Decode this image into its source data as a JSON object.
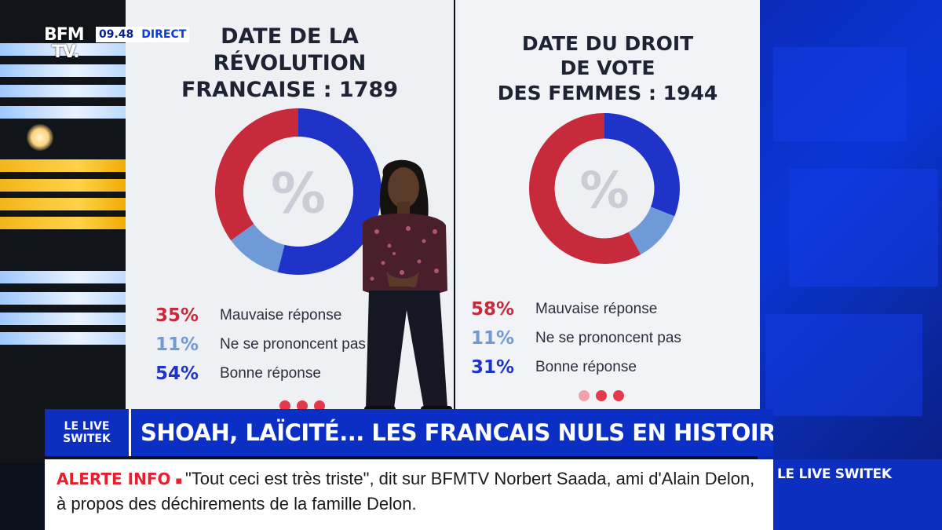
{
  "channel": {
    "logo_line1": "BFM",
    "logo_line2": "TV.",
    "time": "09.48",
    "live_label": "DIRECT"
  },
  "panels": [
    {
      "title_lines": [
        "DATE DE LA",
        "RÉVOLUTION",
        "FRANCAISE : 1789"
      ],
      "stats": [
        {
          "pct": "35%",
          "label": "Mauvaise réponse",
          "value": 35,
          "color": "#c62a3b"
        },
        {
          "pct": "11%",
          "label": "Ne se prononcent pas",
          "value": 11,
          "color": "#6f9ad8"
        },
        {
          "pct": "54%",
          "label": "Bonne réponse",
          "value": 54,
          "color": "#1f33c8"
        }
      ],
      "center_symbol": "%"
    },
    {
      "title_lines": [
        "DATE DU DROIT",
        "DE VOTE",
        "DES FEMMES : 1944"
      ],
      "stats": [
        {
          "pct": "58%",
          "label": "Mauvaise réponse",
          "value": 58,
          "color": "#c62a3b"
        },
        {
          "pct": "11%",
          "label": "Ne se prononcent pas",
          "value": 11,
          "color": "#6f9ad8"
        },
        {
          "pct": "31%",
          "label": "Bonne réponse",
          "value": 31,
          "color": "#1f33c8"
        }
      ],
      "center_symbol": "%"
    }
  ],
  "headline": {
    "show_line1": "LE LIVE",
    "show_line2": "SWITEK",
    "text": "SHOAH, LAÏCITÉ... LES FRANCAIS NULS EN HISTOIRE"
  },
  "ticker": {
    "alert_label": "ALERTE INFO",
    "text": "\"Tout ceci est très triste\", dit sur BFMTV Norbert Saada, ami d'Alain Delon, à propos des déchirements de la famille Delon.",
    "side_label": "LE LIVE SWITEK"
  },
  "colors": {
    "wrong": "#c62a3b",
    "no_opinion": "#6f9ad8",
    "right": "#1f33c8",
    "brand_blue": "#0b2fc4",
    "alert_red": "#e5202e"
  }
}
